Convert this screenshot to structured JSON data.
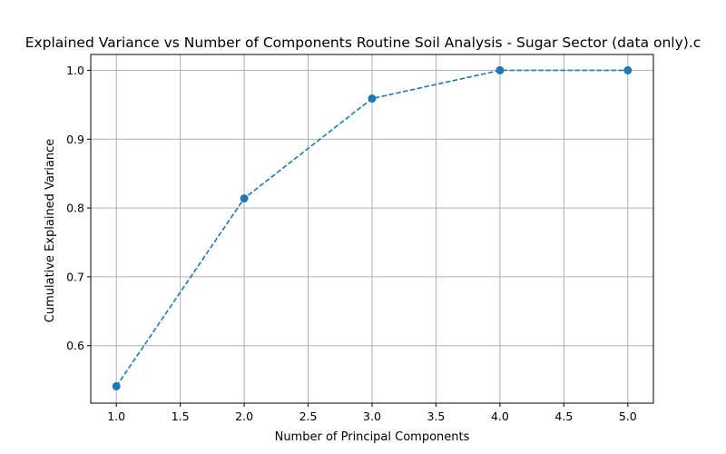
{
  "chart_data": {
    "type": "line",
    "title": "Explained Variance vs Number of Components Routine Soil Analysis - Sugar Sector (data only).c",
    "xlabel": "Number of Principal Components",
    "ylabel": "Cumulative Explained Variance",
    "xlim": [
      0.8,
      5.2
    ],
    "ylim": [
      0.5165,
      1.023
    ],
    "x_ticks": [
      1.0,
      1.5,
      2.0,
      2.5,
      3.0,
      3.5,
      4.0,
      4.5,
      5.0
    ],
    "x_tick_labels": [
      "1.0",
      "1.5",
      "2.0",
      "2.5",
      "3.0",
      "3.5",
      "4.0",
      "4.5",
      "5.0"
    ],
    "y_ticks": [
      0.6,
      0.7,
      0.8,
      0.9,
      1.0
    ],
    "y_tick_labels": [
      "0.6",
      "0.7",
      "0.8",
      "0.9",
      "1.0"
    ],
    "grid": true,
    "series": [
      {
        "x": [
          1,
          2,
          3,
          4,
          5
        ],
        "y": [
          0.541,
          0.814,
          0.959,
          1.0,
          1.0
        ],
        "color": "#1f77b4",
        "line_style": "dashed",
        "marker": "circle"
      }
    ]
  }
}
